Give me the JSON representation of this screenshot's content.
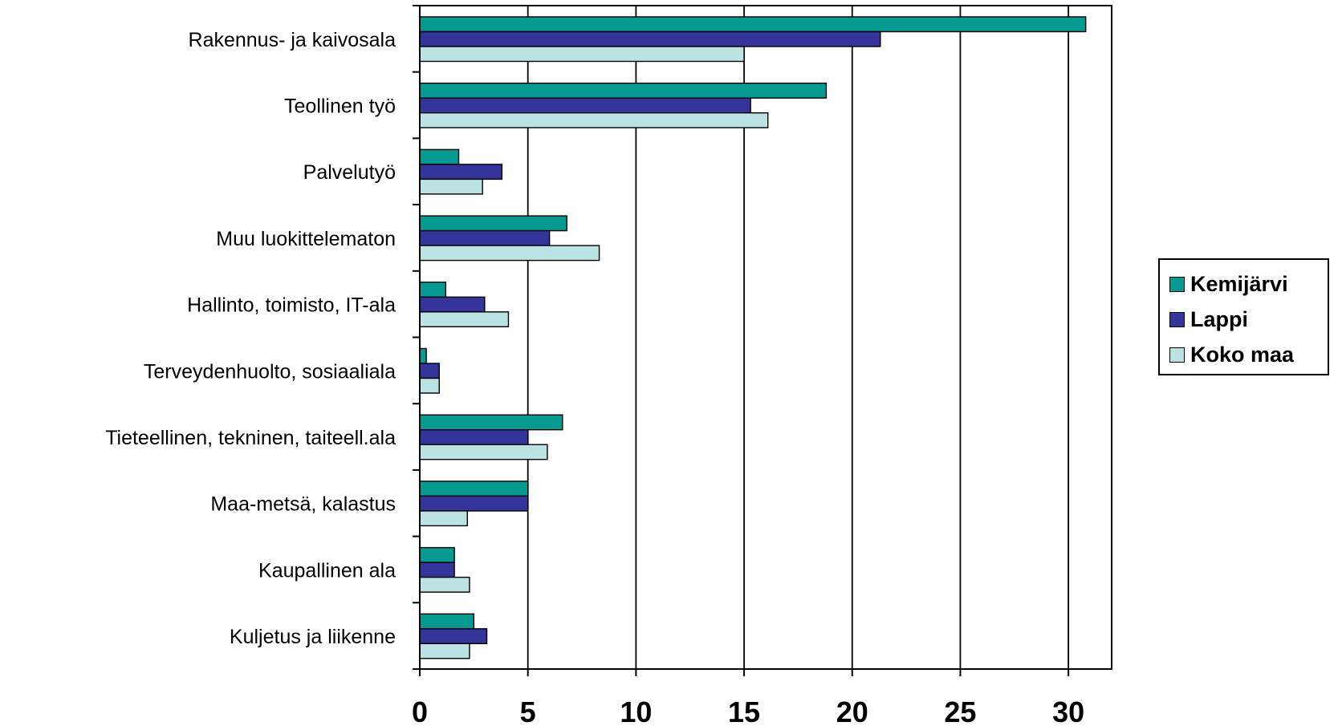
{
  "chart_data": {
    "type": "bar",
    "orientation": "horizontal",
    "categories": [
      "Rakennus- ja kaivosala",
      "Teollinen työ",
      "Palvelutyö",
      "Muu luokittelematon",
      "Hallinto, toimisto, IT-ala",
      "Terveydenhuolto, sosiaaliala",
      "Tieteellinen, tekninen, taiteell.ala",
      "Maa-metsä, kalastus",
      "Kaupallinen ala",
      "Kuljetus ja liikenne"
    ],
    "series": [
      {
        "name": "Kemijärvi",
        "color": "#079a93",
        "values": [
          30.8,
          18.8,
          1.8,
          6.8,
          1.2,
          0.3,
          6.6,
          5.0,
          1.6,
          2.5
        ]
      },
      {
        "name": "Lappi",
        "color": "#35349b",
        "values": [
          21.3,
          15.3,
          3.8,
          6.0,
          3.0,
          0.9,
          5.0,
          5.0,
          1.6,
          3.1
        ]
      },
      {
        "name": "Koko maa",
        "color": "#bce3e4",
        "values": [
          15.0,
          16.1,
          2.9,
          8.3,
          4.1,
          0.9,
          5.9,
          2.2,
          2.3,
          2.3
        ]
      }
    ],
    "xlim": [
      0,
      32
    ],
    "xticks": [
      0,
      5,
      10,
      15,
      20,
      25,
      30
    ],
    "grid": "vertical",
    "legend": "right",
    "title": "",
    "xlabel": "",
    "ylabel": ""
  }
}
